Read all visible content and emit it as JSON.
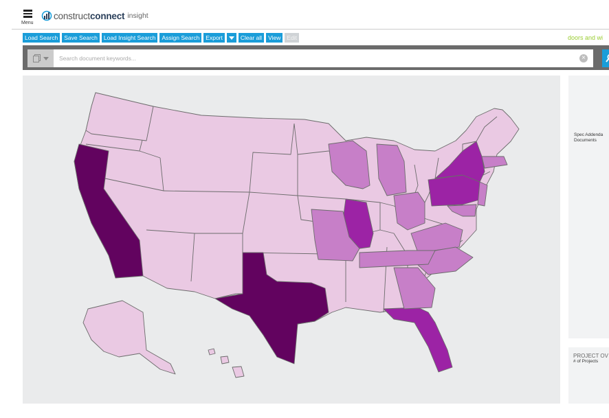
{
  "header": {
    "menu_label": "Menu",
    "brand_light": "construct",
    "brand_bold": "connect",
    "brand_sub": "insight"
  },
  "toolbar": {
    "load_search": "Load Search",
    "save_search": "Save Search",
    "load_insight_search": "Load Insight Search",
    "assign_search": "Assign Search",
    "export": "Export",
    "clear_all": "Clear all",
    "view": "View",
    "edit": "Edit"
  },
  "search_title": "doors and wi",
  "search": {
    "placeholder": "Search document keywords..."
  },
  "map": {
    "color_scale": {
      "lightest": "#eac9e3",
      "light": "#c77fc8",
      "medium": "#b34fba",
      "strong": "#9c23a5",
      "darkest": "#62035f"
    },
    "states": {
      "CA": "darkest",
      "TX": "darkest",
      "PA": "strong",
      "NY": "strong",
      "IL": "strong",
      "FL": "strong",
      "MO": "light",
      "WI": "light",
      "MI": "light",
      "OH": "light",
      "VA": "light",
      "NC": "light",
      "TN": "light",
      "GA": "light",
      "NJ": "light",
      "MA": "light",
      "MD": "light",
      "other": "lightest"
    }
  },
  "side_panel": {
    "line1": "Spec Addenda",
    "line2": "Documents"
  },
  "side_panel2": {
    "title": "PROJECT OV",
    "subtitle": "# of Projects"
  }
}
